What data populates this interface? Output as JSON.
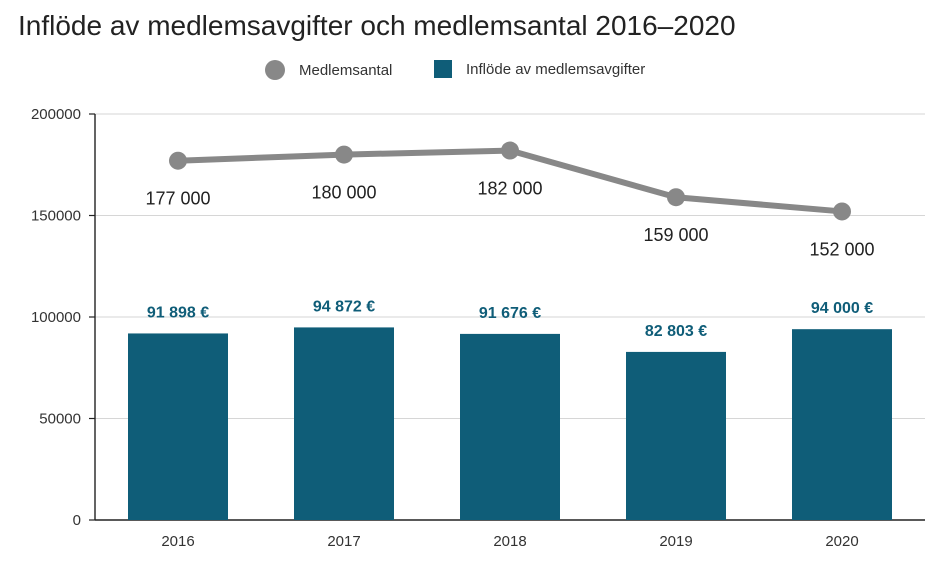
{
  "chart_data": {
    "type": "bar",
    "title": "Inflöde av medlemsavgifter och medlemsantal 2016–2020",
    "categories": [
      "2016",
      "2017",
      "2018",
      "2019",
      "2020"
    ],
    "ylim": [
      0,
      200000
    ],
    "yticks": [
      "0",
      "50000",
      "100000",
      "150000",
      "200000"
    ],
    "grid": true,
    "legend_position": "top-center",
    "series": [
      {
        "name": "Inflöde av medlemsavgifter",
        "type": "bar",
        "color": "#0f5d78",
        "values": [
          91898,
          94872,
          91676,
          82803,
          94000
        ],
        "labels": [
          "91 898 €",
          "94 872 €",
          "91 676 €",
          "82 803 €",
          "94 000 €"
        ]
      },
      {
        "name": "Medlemsantal",
        "type": "line",
        "color": "#888888",
        "values": [
          177000,
          180000,
          182000,
          159000,
          152000
        ],
        "labels": [
          "177 000",
          "180 000",
          "182 000",
          "159 000",
          "152 000"
        ]
      }
    ]
  }
}
